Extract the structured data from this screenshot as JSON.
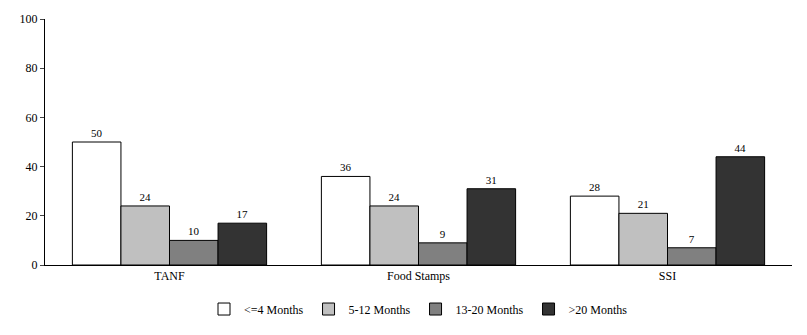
{
  "chart_data": {
    "type": "bar",
    "categories": [
      "TANF",
      "Food Stamps",
      "SSI"
    ],
    "series": [
      {
        "name": "<=4 Months",
        "color": "#ffffff",
        "values": [
          50,
          36,
          28
        ]
      },
      {
        "name": "5-12 Months",
        "color": "#c0c0c0",
        "values": [
          24,
          24,
          21
        ]
      },
      {
        "name": "13-20 Months",
        "color": "#808080",
        "values": [
          10,
          9,
          7
        ]
      },
      {
        "name": ">20 Months",
        "color": "#333333",
        "values": [
          17,
          31,
          44
        ]
      }
    ],
    "ylim": [
      0,
      100
    ],
    "yticks": [
      0,
      20,
      40,
      60,
      80,
      100
    ],
    "grid": false,
    "legend": "bottom",
    "data_labels": true
  }
}
